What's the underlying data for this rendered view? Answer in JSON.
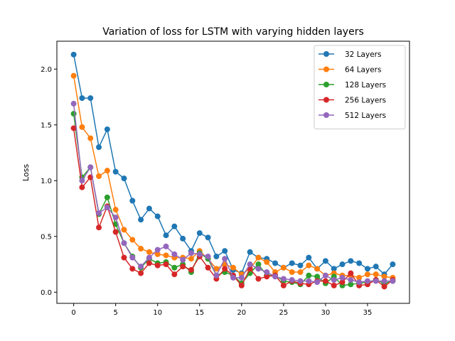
{
  "chart_data": {
    "type": "line",
    "title": "Variation of loss for LSTM with varying hidden layers",
    "xlabel": "",
    "ylabel": "Loss",
    "xlim": [
      -2,
      40
    ],
    "ylim": [
      -0.1,
      2.25
    ],
    "xticks": [
      "0",
      "5",
      "10",
      "15",
      "20",
      "25",
      "30",
      "35"
    ],
    "yticks": [
      "0.0",
      "0.5",
      "1.0",
      "1.5",
      "2.0"
    ],
    "grid": false,
    "legend_position": "top-right",
    "x": [
      0,
      1,
      2,
      3,
      4,
      5,
      6,
      7,
      8,
      9,
      10,
      11,
      12,
      13,
      14,
      15,
      16,
      17,
      18,
      19,
      20,
      21,
      22,
      23,
      24,
      25,
      26,
      27,
      28,
      29,
      30,
      31,
      32,
      33,
      34,
      35,
      36,
      37,
      38
    ],
    "series": [
      {
        "name": "32 Layers",
        "color": "#1f77b4",
        "values": [
          2.13,
          1.74,
          1.74,
          1.3,
          1.46,
          1.08,
          1.02,
          0.82,
          0.65,
          0.75,
          0.68,
          0.51,
          0.59,
          0.48,
          0.37,
          0.53,
          0.49,
          0.32,
          0.37,
          0.2,
          0.17,
          0.36,
          0.31,
          0.3,
          0.26,
          0.22,
          0.26,
          0.24,
          0.31,
          0.21,
          0.28,
          0.21,
          0.25,
          0.28,
          0.26,
          0.21,
          0.23,
          0.16,
          0.25
        ]
      },
      {
        "name": "64 Layers",
        "color": "#ff7f0e",
        "values": [
          1.94,
          1.48,
          1.38,
          1.04,
          1.09,
          0.74,
          0.56,
          0.47,
          0.39,
          0.36,
          0.34,
          0.33,
          0.31,
          0.31,
          0.3,
          0.37,
          0.3,
          0.21,
          0.25,
          0.22,
          0.16,
          0.21,
          0.31,
          0.27,
          0.18,
          0.22,
          0.18,
          0.18,
          0.24,
          0.21,
          0.15,
          0.17,
          0.15,
          0.15,
          0.13,
          0.16,
          0.16,
          0.14,
          0.13
        ]
      },
      {
        "name": "128 Layers",
        "color": "#2ca02c",
        "values": [
          1.6,
          1.03,
          1.12,
          0.7,
          0.85,
          0.61,
          0.44,
          0.32,
          0.22,
          0.3,
          0.26,
          0.27,
          0.22,
          0.25,
          0.18,
          0.35,
          0.3,
          0.15,
          0.18,
          0.15,
          0.08,
          0.17,
          0.25,
          0.15,
          0.15,
          0.1,
          0.09,
          0.07,
          0.15,
          0.14,
          0.08,
          0.14,
          0.06,
          0.07,
          0.08,
          0.09,
          0.11,
          0.08,
          0.1
        ]
      },
      {
        "name": "256 Layers",
        "color": "#d62728",
        "values": [
          1.47,
          0.94,
          1.03,
          0.58,
          0.77,
          0.54,
          0.31,
          0.21,
          0.17,
          0.26,
          0.24,
          0.25,
          0.16,
          0.23,
          0.2,
          0.32,
          0.22,
          0.12,
          0.21,
          0.15,
          0.06,
          0.21,
          0.12,
          0.14,
          0.15,
          0.06,
          0.1,
          0.08,
          0.07,
          0.1,
          0.1,
          0.06,
          0.09,
          0.17,
          0.06,
          0.07,
          0.11,
          0.05,
          0.11
        ]
      },
      {
        "name": "512 Layers",
        "color": "#9467bd",
        "values": [
          1.69,
          1.0,
          1.12,
          0.71,
          0.76,
          0.67,
          0.44,
          0.31,
          0.23,
          0.31,
          0.38,
          0.41,
          0.34,
          0.29,
          0.35,
          0.34,
          0.32,
          0.15,
          0.3,
          0.13,
          0.13,
          0.25,
          0.21,
          0.18,
          0.14,
          0.12,
          0.11,
          0.1,
          0.1,
          0.09,
          0.15,
          0.11,
          0.13,
          0.11,
          0.09,
          0.1,
          0.1,
          0.1,
          0.1
        ]
      }
    ]
  }
}
